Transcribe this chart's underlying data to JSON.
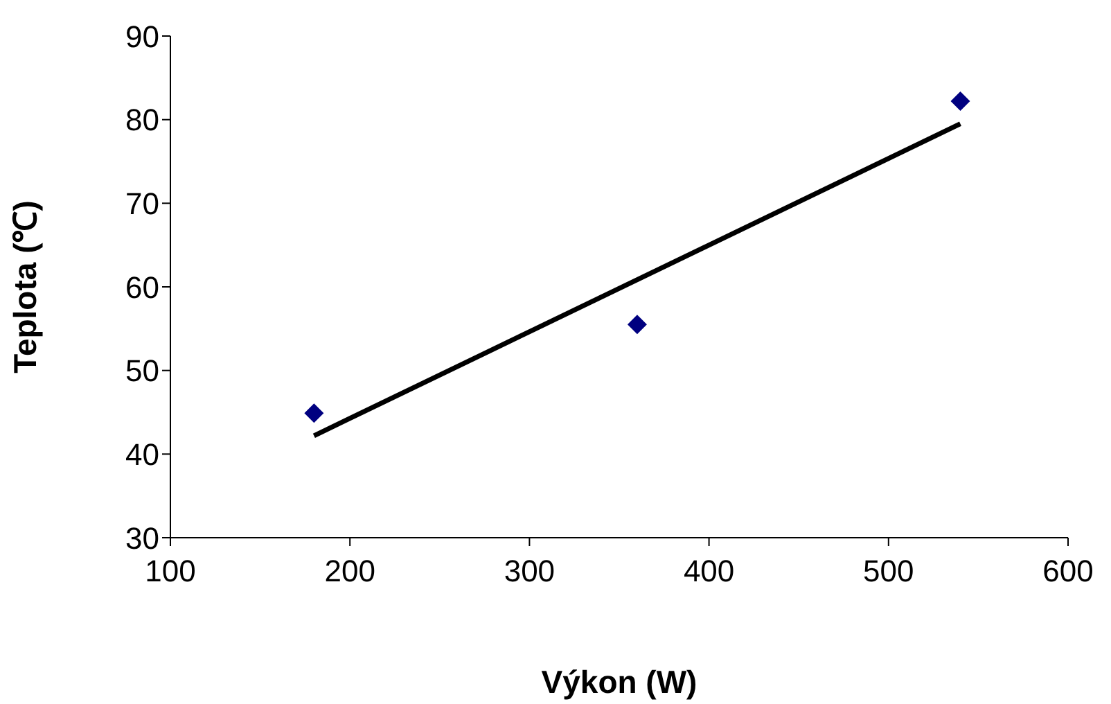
{
  "chart_data": {
    "type": "scatter",
    "xlabel": "Výkon (W)",
    "ylabel": "Teplota (℃)",
    "xlim": [
      100,
      600
    ],
    "xticks": [
      100,
      200,
      300,
      400,
      500,
      600
    ],
    "ylim": [
      30,
      90
    ],
    "yticks": [
      30,
      40,
      50,
      60,
      70,
      80,
      90
    ],
    "grid": false,
    "legend": false,
    "series": [
      {
        "color": "#000080",
        "marker": "diamond",
        "x": [
          180,
          360,
          540
        ],
        "values": [
          44.9,
          55.5,
          82.2
        ]
      },
      {
        "type": "line",
        "color": "#000000",
        "marker": "none",
        "line_style": "solid",
        "x": [
          180,
          540
        ],
        "values": [
          42.2,
          79.5
        ]
      }
    ]
  }
}
